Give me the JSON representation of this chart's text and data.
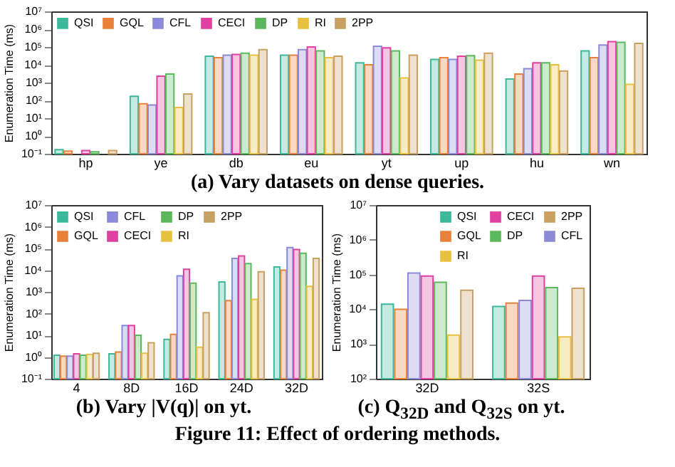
{
  "chart_data": [
    {
      "type": "bar",
      "title": "(a) Vary datasets on dense queries.",
      "ylabel": "Enumeration Time (ms)",
      "categories": [
        "hp",
        "ye",
        "db",
        "eu",
        "yt",
        "up",
        "hu",
        "wn"
      ],
      "log": true,
      "ylim": [
        0.1,
        10000000
      ],
      "yticks": [
        {
          "value": 0.1,
          "label": "10⁻¹"
        },
        {
          "value": 1,
          "label": "10⁰"
        },
        {
          "value": 10,
          "label": "10¹"
        },
        {
          "value": 100,
          "label": "10²"
        },
        {
          "value": 1000,
          "label": "10³"
        },
        {
          "value": 10000,
          "label": "10⁴"
        },
        {
          "value": 100000,
          "label": "10⁵"
        },
        {
          "value": 1000000,
          "label": "10⁶"
        },
        {
          "value": 10000000,
          "label": "10⁷"
        }
      ],
      "legend": "top left",
      "annotations": [
        "Figure 11: Effect of ordering methods."
      ],
      "series": [
        {
          "name": "QSI",
          "color": "#3cb89a",
          "values": [
            0.17,
            170,
            30000,
            35000,
            13000,
            20000,
            1600,
            60000
          ]
        },
        {
          "name": "GQL",
          "color": "#e8823a",
          "values": [
            0.14,
            65,
            25000,
            35000,
            10000,
            25000,
            3000,
            25000
          ]
        },
        {
          "name": "CFL",
          "color": "#8a8ad8",
          "values": [
            null,
            55,
            35000,
            70000,
            110000,
            20000,
            6000,
            130000
          ]
        },
        {
          "name": "CECI",
          "color": "#e040a0",
          "values": [
            0.15,
            2300,
            38000,
            100000,
            90000,
            30000,
            13000,
            200000
          ]
        },
        {
          "name": "DP",
          "color": "#5cb85c",
          "values": [
            0.13,
            3000,
            45000,
            60000,
            60000,
            32000,
            13000,
            180000
          ]
        },
        {
          "name": "RI",
          "color": "#e8c040",
          "values": [
            null,
            40,
            35000,
            25000,
            1800,
            18000,
            10000,
            800
          ]
        },
        {
          "name": "2PP",
          "color": "#c8a060",
          "values": [
            0.15,
            230,
            70000,
            30000,
            35000,
            45000,
            4500,
            160000
          ]
        }
      ]
    },
    {
      "type": "bar",
      "title": "(b) Vary |V(q)| on yt.",
      "ylabel": "Enumeration Time (ms)",
      "categories": [
        "4",
        "8D",
        "16D",
        "24D",
        "32D"
      ],
      "log": true,
      "ylim": [
        0.1,
        10000000
      ],
      "yticks": [
        {
          "value": 0.1,
          "label": "10⁻¹"
        },
        {
          "value": 1,
          "label": "10⁰"
        },
        {
          "value": 10,
          "label": "10¹"
        },
        {
          "value": 100,
          "label": "10²"
        },
        {
          "value": 1000,
          "label": "10³"
        },
        {
          "value": 10000,
          "label": "10⁴"
        },
        {
          "value": 100000,
          "label": "10⁵"
        },
        {
          "value": 1000000,
          "label": "10⁶"
        },
        {
          "value": 10000000,
          "label": "10⁷"
        }
      ],
      "legend": "top left",
      "series": [
        {
          "name": "QSI",
          "color": "#3cb89a",
          "values": [
            1.2,
            1.4,
            6.5,
            2900,
            14000
          ]
        },
        {
          "name": "GQL",
          "color": "#e8823a",
          "values": [
            1.1,
            1.7,
            11,
            400,
            10000
          ]
        },
        {
          "name": "CFL",
          "color": "#8a8ad8",
          "values": [
            1.1,
            28,
            5500,
            35000,
            110000
          ]
        },
        {
          "name": "CECI",
          "color": "#e040a0",
          "values": [
            1.4,
            28,
            11000,
            45000,
            90000
          ]
        },
        {
          "name": "DP",
          "color": "#5cb85c",
          "values": [
            1.2,
            10,
            2500,
            20000,
            60000
          ]
        },
        {
          "name": "RI",
          "color": "#e8c040",
          "values": [
            1.3,
            1.5,
            2.8,
            450,
            1800
          ]
        },
        {
          "name": "2PP",
          "color": "#c8a060",
          "values": [
            1.5,
            4.5,
            110,
            8500,
            35000
          ]
        }
      ]
    },
    {
      "type": "bar",
      "title": "(c) Q$_{32D}$ and Q$_{32S}$ on yt.",
      "ylabel": "Enumeration Time (ms)",
      "categories": [
        "32D",
        "32S"
      ],
      "log": true,
      "ylim": [
        100,
        10000000
      ],
      "yticks": [
        {
          "value": 100,
          "label": "10²"
        },
        {
          "value": 1000,
          "label": "10³"
        },
        {
          "value": 10000,
          "label": "10⁴"
        },
        {
          "value": 100000,
          "label": "10⁵"
        },
        {
          "value": 1000000,
          "label": "10⁶"
        },
        {
          "value": 10000000,
          "label": "10⁷"
        }
      ],
      "legend": "top right",
      "series": [
        {
          "name": "QSI",
          "color": "#3cb89a",
          "values": [
            14000,
            12000
          ]
        },
        {
          "name": "GQL",
          "color": "#e8823a",
          "values": [
            10000,
            15000
          ]
        },
        {
          "name": "CFL",
          "color": "#8a8ad8",
          "values": [
            110000,
            18000
          ]
        },
        {
          "name": "CECI",
          "color": "#e040a0",
          "values": [
            90000,
            90000
          ]
        },
        {
          "name": "DP",
          "color": "#5cb85c",
          "values": [
            60000,
            42000
          ]
        },
        {
          "name": "RI",
          "color": "#e8c040",
          "values": [
            1800,
            1600
          ]
        },
        {
          "name": "2PP",
          "color": "#c8a060",
          "values": [
            35000,
            40000
          ]
        }
      ]
    }
  ]
}
